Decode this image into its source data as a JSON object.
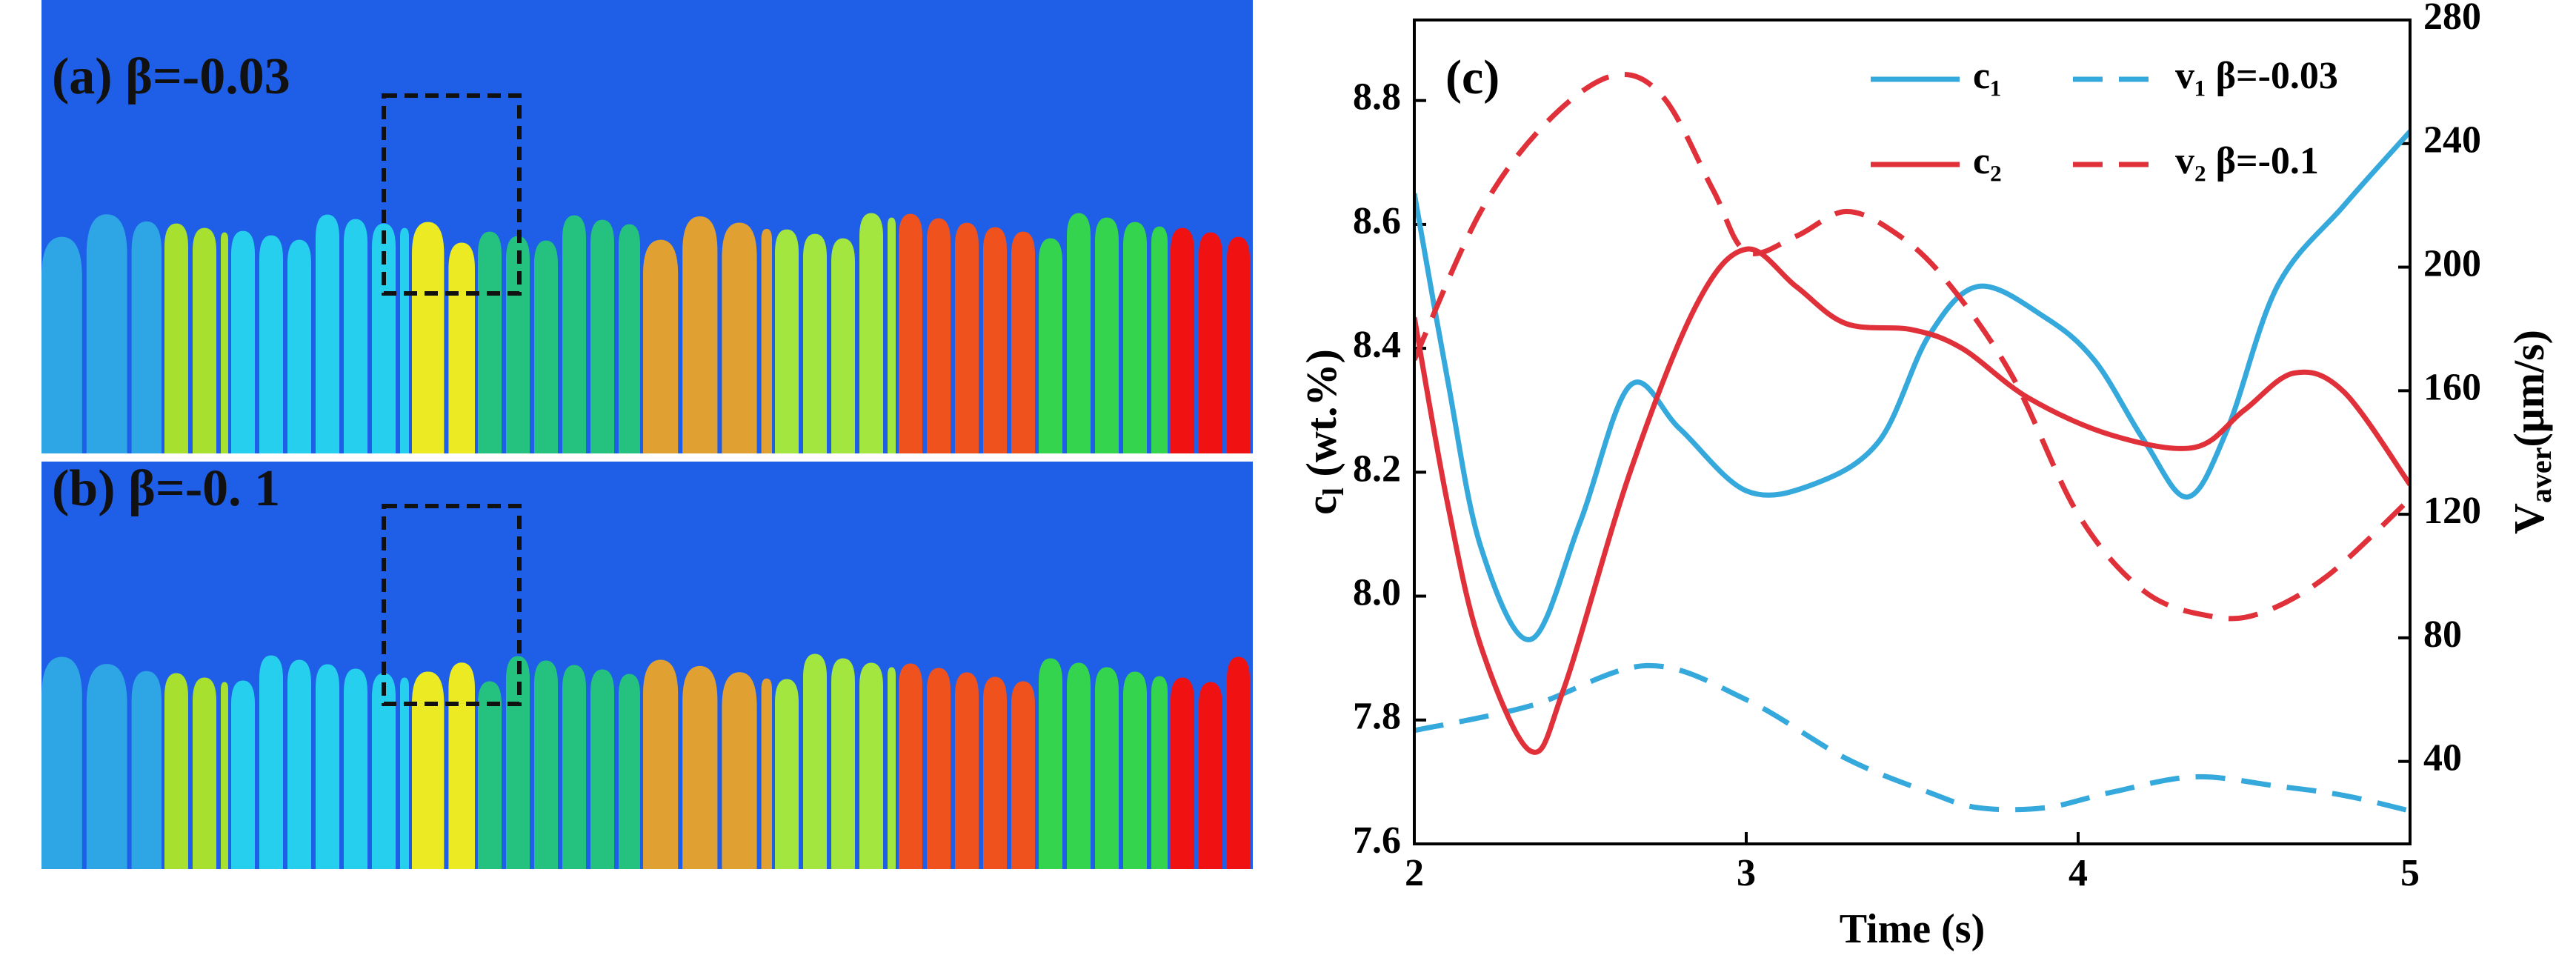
{
  "panels": [
    {
      "label": "(a) β=-0.03"
    },
    {
      "label": "(b) β=-0. 1"
    }
  ],
  "chart_data": {
    "type": "line",
    "title": "(c)",
    "x_label": "Time (s)",
    "y_label": {
      "main": "c",
      "sub": "l",
      "unit": " (wt.%)"
    },
    "y2_label": {
      "main": "V",
      "sub": "aver",
      "unit": "(μm/s)"
    },
    "xlim": [
      2,
      5
    ],
    "xticks": [
      2,
      3,
      4,
      5
    ],
    "ylim": [
      7.6,
      8.93
    ],
    "yticks": [
      7.6,
      7.8,
      {
        "value": 8,
        "label": "8.0"
      },
      8.2,
      8.4,
      8.6,
      8.8
    ],
    "y2lim": [
      13.3,
      280
    ],
    "y2ticks": [
      40,
      80,
      120,
      160,
      200,
      240,
      280
    ],
    "legend": "upper right",
    "series": [
      {
        "name": "c₁",
        "color": "#36a9dc",
        "dash": false,
        "axis": "y",
        "x": [
          2.0,
          2.1,
          2.2,
          2.35,
          2.5,
          2.65,
          2.8,
          3.0,
          3.2,
          3.4,
          3.55,
          3.7,
          3.9,
          4.05,
          4.2,
          4.33,
          4.45,
          4.6,
          4.8,
          5.0
        ],
        "values": [
          8.65,
          8.35,
          8.08,
          7.93,
          8.12,
          8.34,
          8.27,
          8.17,
          8.18,
          8.25,
          8.42,
          8.5,
          8.45,
          8.38,
          8.25,
          8.16,
          8.27,
          8.5,
          8.63,
          8.75
        ]
      },
      {
        "name": "v₁ β=-0.03",
        "color": "#36a9dc",
        "dash": true,
        "axis": "y2",
        "x": [
          2.0,
          2.35,
          2.7,
          3.0,
          3.3,
          3.55,
          3.7,
          3.9,
          4.1,
          4.35,
          4.6,
          4.8,
          5.0
        ],
        "values": [
          50,
          58,
          71,
          60,
          41,
          30,
          25,
          25,
          30,
          35,
          32,
          29,
          24
        ]
      },
      {
        "name": "c₂",
        "color": "#e0313a",
        "dash": false,
        "axis": "y",
        "x": [
          2.0,
          2.1,
          2.2,
          2.35,
          2.45,
          2.65,
          2.85,
          3.0,
          3.15,
          3.3,
          3.5,
          3.65,
          3.85,
          4.1,
          4.35,
          4.5,
          4.65,
          4.8,
          5.0
        ],
        "values": [
          8.45,
          8.15,
          7.92,
          7.75,
          7.85,
          8.2,
          8.47,
          8.56,
          8.5,
          8.44,
          8.43,
          8.4,
          8.32,
          8.26,
          8.24,
          8.3,
          8.36,
          8.33,
          8.18
        ]
      },
      {
        "name": "v₂ β=-0.1",
        "color": "#e0313a",
        "dash": true,
        "axis": "y2",
        "x": [
          2.0,
          2.2,
          2.4,
          2.6,
          2.75,
          2.9,
          3.0,
          3.15,
          3.3,
          3.45,
          3.6,
          3.8,
          4.0,
          4.2,
          4.4,
          4.55,
          4.75,
          5.0
        ],
        "values": [
          170,
          218,
          247,
          262,
          255,
          225,
          205,
          210,
          218,
          211,
          196,
          165,
          120,
          95,
          87,
          88,
          100,
          125
        ]
      }
    ]
  }
}
